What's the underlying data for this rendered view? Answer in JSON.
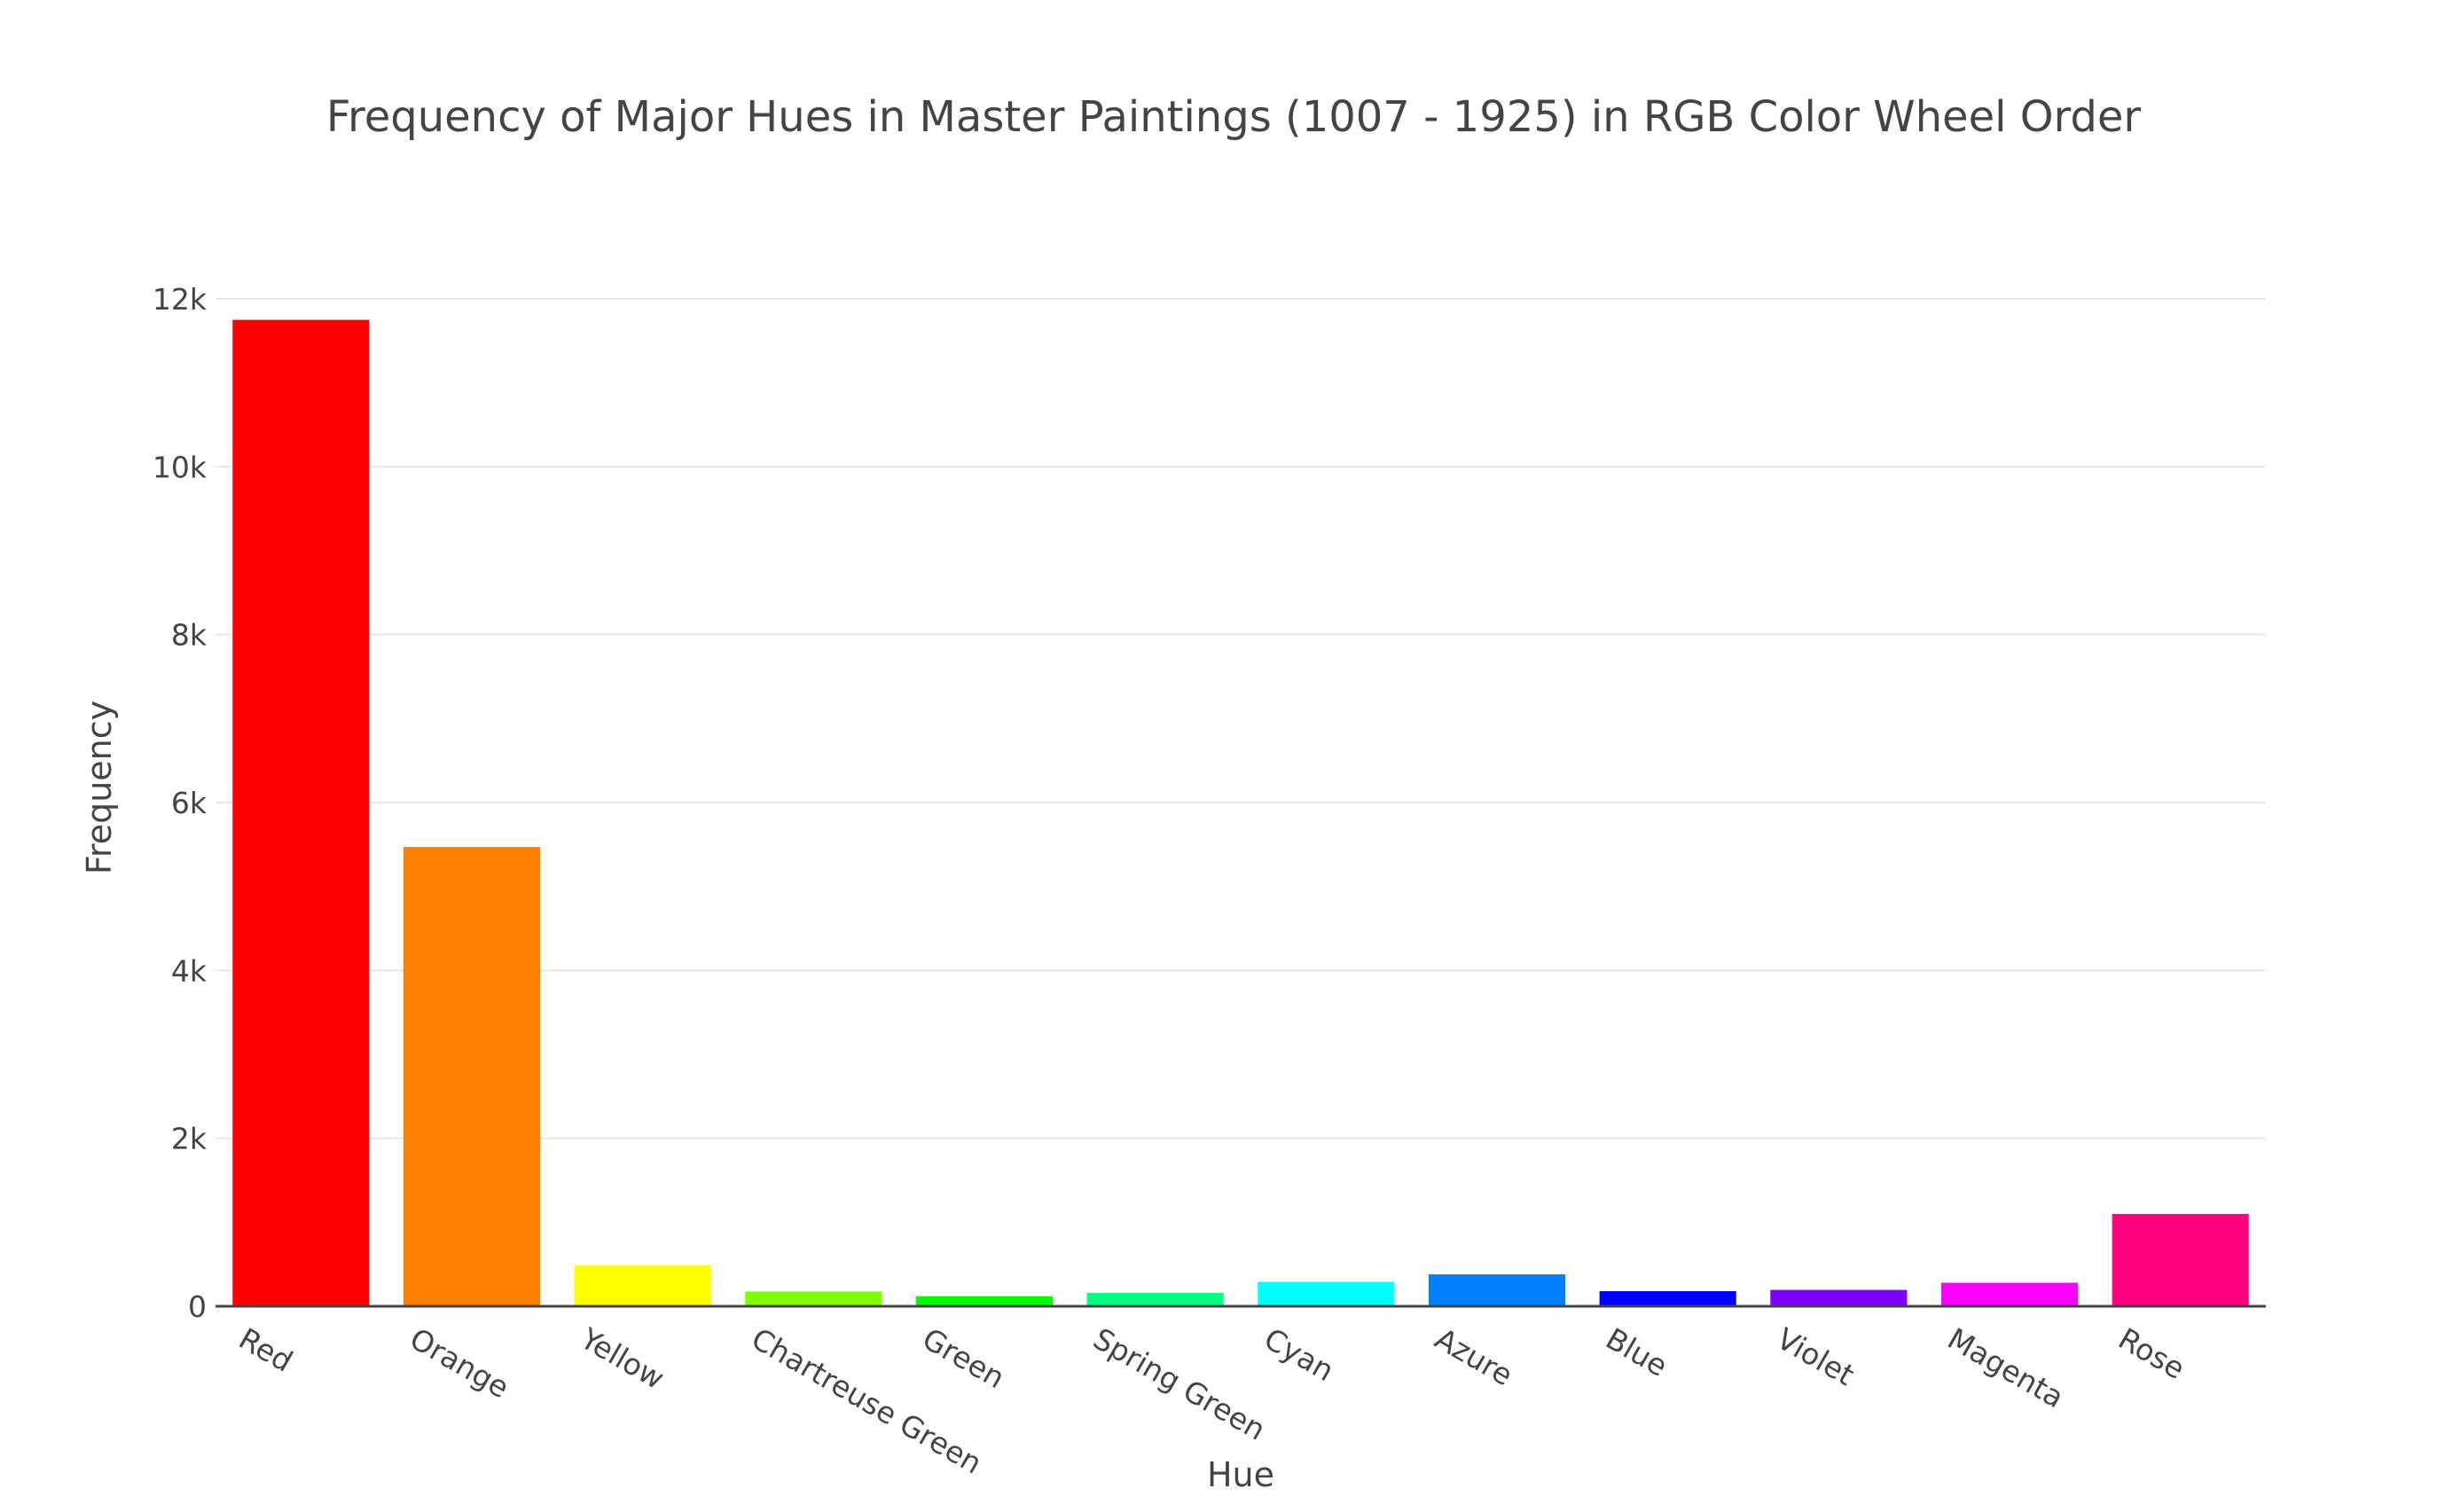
{
  "chart_data": {
    "type": "bar",
    "title": "Frequency of Major Hues in Master Paintings (1007 - 1925) in RGB Color Wheel Order",
    "xlabel": "Hue",
    "ylabel": "Frequency",
    "categories": [
      "Red",
      "Orange",
      "Yellow",
      "Chartreuse Green",
      "Green",
      "Spring Green",
      "Cyan",
      "Azure",
      "Blue",
      "Violet",
      "Magenta",
      "Rose"
    ],
    "values": [
      11750,
      5470,
      490,
      175,
      120,
      160,
      290,
      380,
      180,
      195,
      280,
      1100
    ],
    "colors": [
      "#ff0000",
      "#ff8000",
      "#ffff00",
      "#80ff00",
      "#00ff00",
      "#00ff80",
      "#00ffff",
      "#0080ff",
      "#0000ff",
      "#8000ff",
      "#ff00ff",
      "#ff0080"
    ],
    "ylim": [
      0,
      12000
    ],
    "yticks": [
      0,
      2000,
      4000,
      6000,
      8000,
      10000,
      12000
    ],
    "ytick_labels": [
      "0",
      "2k",
      "4k",
      "6k",
      "8k",
      "10k",
      "12k"
    ],
    "grid": true,
    "legend": "none"
  }
}
